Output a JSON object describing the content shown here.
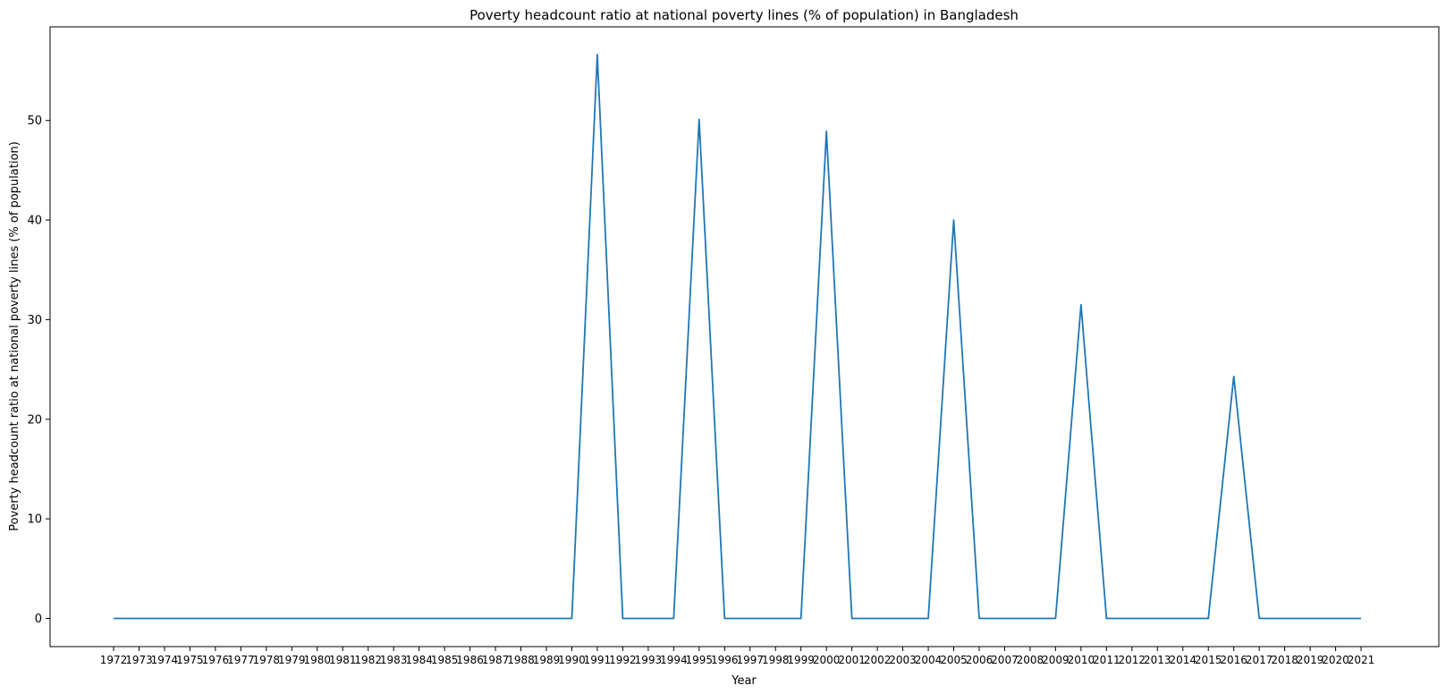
{
  "chart_data": {
    "type": "line",
    "title": "Poverty headcount ratio at national poverty lines (% of population) in Bangladesh",
    "xlabel": "Year",
    "ylabel": "Poverty headcount ratio at national poverty lines (% of population)",
    "x": [
      "1972",
      "1973",
      "1974",
      "1975",
      "1976",
      "1977",
      "1978",
      "1979",
      "1980",
      "1981",
      "1982",
      "1983",
      "1984",
      "1985",
      "1986",
      "1987",
      "1988",
      "1989",
      "1990",
      "1991",
      "1992",
      "1993",
      "1994",
      "1995",
      "1996",
      "1997",
      "1998",
      "1999",
      "2000",
      "2001",
      "2002",
      "2003",
      "2004",
      "2005",
      "2006",
      "2007",
      "2008",
      "2009",
      "2010",
      "2011",
      "2012",
      "2013",
      "2014",
      "2015",
      "2016",
      "2017",
      "2018",
      "2019",
      "2020",
      "2021"
    ],
    "series": [
      {
        "values": [
          0,
          0,
          0,
          0,
          0,
          0,
          0,
          0,
          0,
          0,
          0,
          0,
          0,
          0,
          0,
          0,
          0,
          0,
          0,
          56.6,
          0,
          0,
          0,
          50.1,
          0,
          0,
          0,
          0,
          48.9,
          0,
          0,
          0,
          0,
          40,
          0,
          0,
          0,
          0,
          31.5,
          0,
          0,
          0,
          0,
          0,
          24.3,
          0,
          0,
          0,
          0,
          0
        ],
        "color": "#1f77b4"
      }
    ],
    "ylim": [
      -2.83,
      59.4
    ],
    "yticks": [
      0,
      10,
      20,
      30,
      40,
      50
    ],
    "grid": false,
    "legend": "none"
  }
}
